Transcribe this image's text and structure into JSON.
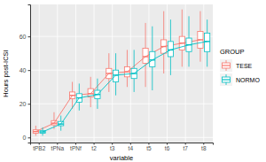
{
  "chart_data": {
    "type": "box",
    "x_label": "variable",
    "y_label": "Hours post-ICSI",
    "legend_title": "GROUP",
    "legend": "right",
    "grid": true,
    "categories": [
      "tPB2",
      "tPNa",
      "tPNf",
      "t2",
      "t3",
      "t4",
      "t5",
      "t6",
      "t7",
      "t8"
    ],
    "ylim": [
      -3,
      79
    ],
    "yticks": [
      0,
      20,
      40,
      60
    ],
    "series": [
      {
        "name": "TESE",
        "color": "#F8766D",
        "min": [
          1,
          5,
          17,
          18,
          27,
          30,
          30,
          38,
          42,
          45
        ],
        "q1": [
          2.5,
          7.5,
          23,
          24,
          35,
          36,
          44,
          50,
          52,
          53
        ],
        "median": [
          3.5,
          8.5,
          25,
          26,
          38,
          39,
          48,
          54,
          56,
          58
        ],
        "q3": [
          4.5,
          10,
          27,
          29,
          41,
          42,
          53,
          58,
          60,
          63
        ],
        "max": [
          7,
          15,
          33,
          36,
          50,
          52,
          68,
          75,
          76,
          75
        ]
      },
      {
        "name": "NORMO",
        "color": "#00BFC4",
        "min": [
          1,
          4,
          16,
          17,
          25,
          27,
          28,
          37,
          42,
          42
        ],
        "q1": [
          2.5,
          7,
          21,
          23,
          33,
          35,
          42,
          48,
          51,
          51
        ],
        "median": [
          3.3,
          8,
          23.5,
          25.5,
          37,
          38,
          46,
          52,
          55,
          57
        ],
        "q3": [
          4,
          9.5,
          26,
          28,
          40,
          41,
          51,
          57,
          59,
          62
        ],
        "max": [
          6,
          13,
          32,
          35,
          50,
          52,
          66,
          70,
          72,
          70
        ]
      }
    ]
  }
}
